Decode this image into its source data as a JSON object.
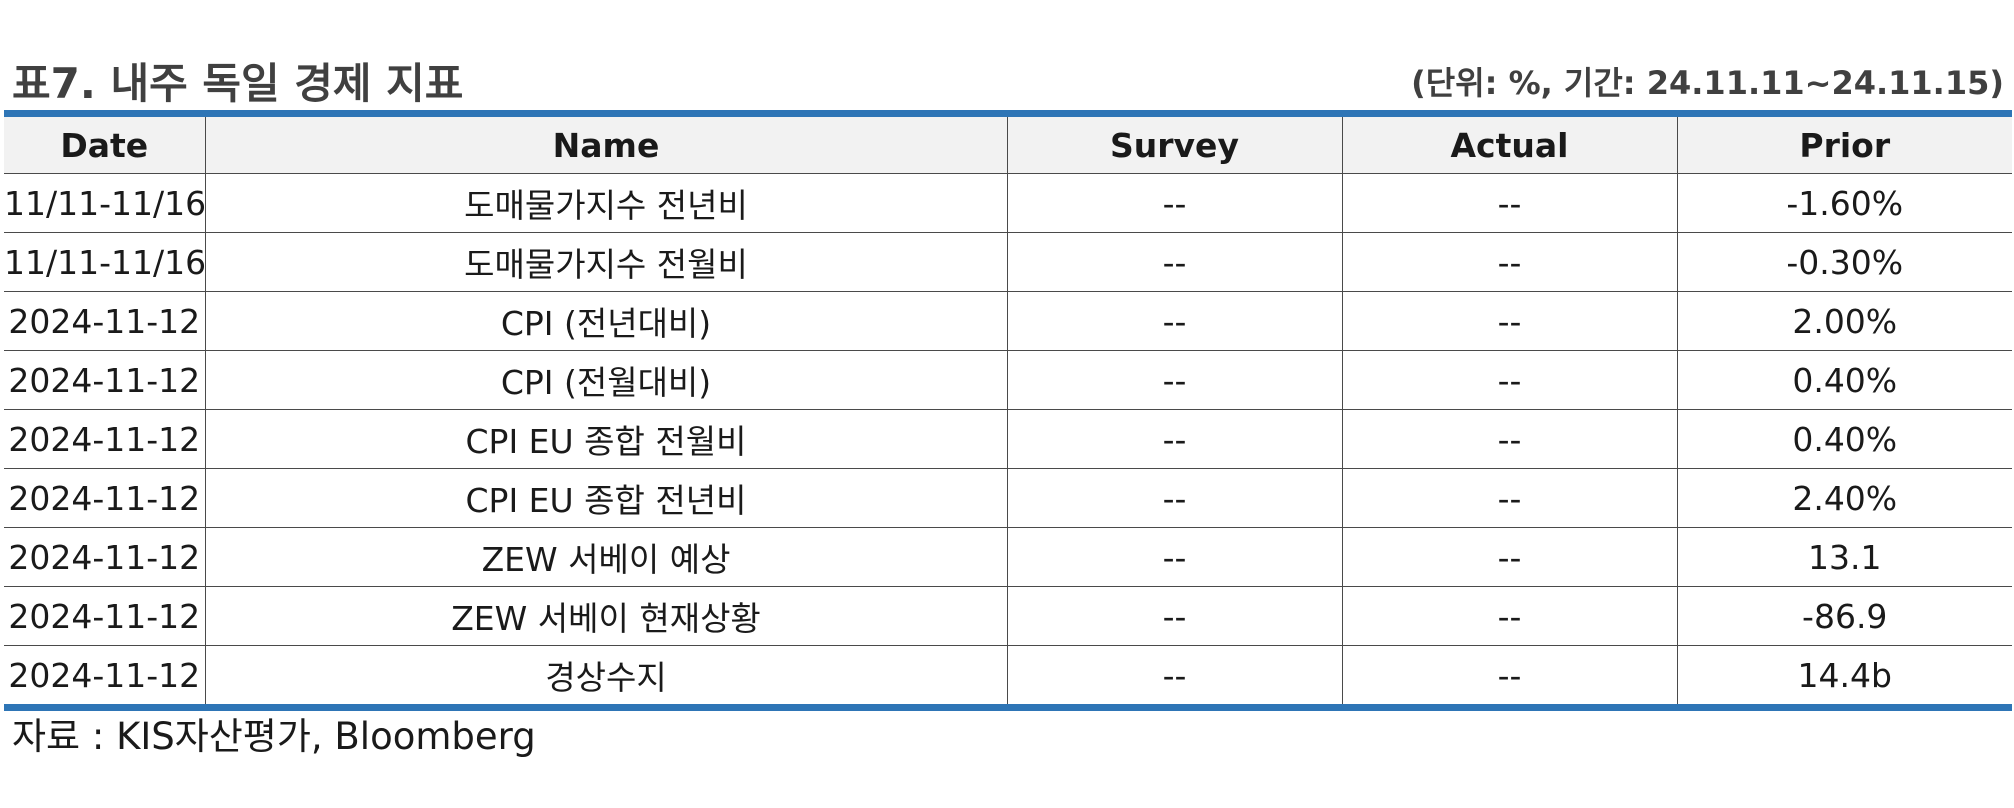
{
  "title": "표7. 내주 독일 경제 지표",
  "unit_note": "(단위: %, 기간: 24.11.11~24.11.15)",
  "table": {
    "headers": [
      "Date",
      "Name",
      "Survey",
      "Actual",
      "Prior"
    ],
    "rows": [
      [
        "11/11-11/16",
        "도매물가지수 전년비",
        "--",
        "--",
        "-1.60%"
      ],
      [
        "11/11-11/16",
        "도매물가지수 전월비",
        "--",
        "--",
        "-0.30%"
      ],
      [
        "2024-11-12",
        "CPI (전년대비)",
        "--",
        "--",
        "2.00%"
      ],
      [
        "2024-11-12",
        "CPI (전월대비)",
        "--",
        "--",
        "0.40%"
      ],
      [
        "2024-11-12",
        "CPI EU 종합 전월비",
        "--",
        "--",
        "0.40%"
      ],
      [
        "2024-11-12",
        "CPI EU 종합 전년비",
        "--",
        "--",
        "2.40%"
      ],
      [
        "2024-11-12",
        "ZEW 서베이 예상",
        "--",
        "--",
        "13.1"
      ],
      [
        "2024-11-12",
        "ZEW 서베이 현재상황",
        "--",
        "--",
        "-86.9"
      ],
      [
        "2024-11-12",
        "경상수지",
        "--",
        "--",
        "14.4b"
      ]
    ]
  },
  "source": "자료 : KIS자산평가, Bloomberg",
  "colors": {
    "rule": "#2e75b6",
    "header_bg": "#f2f2f2"
  }
}
